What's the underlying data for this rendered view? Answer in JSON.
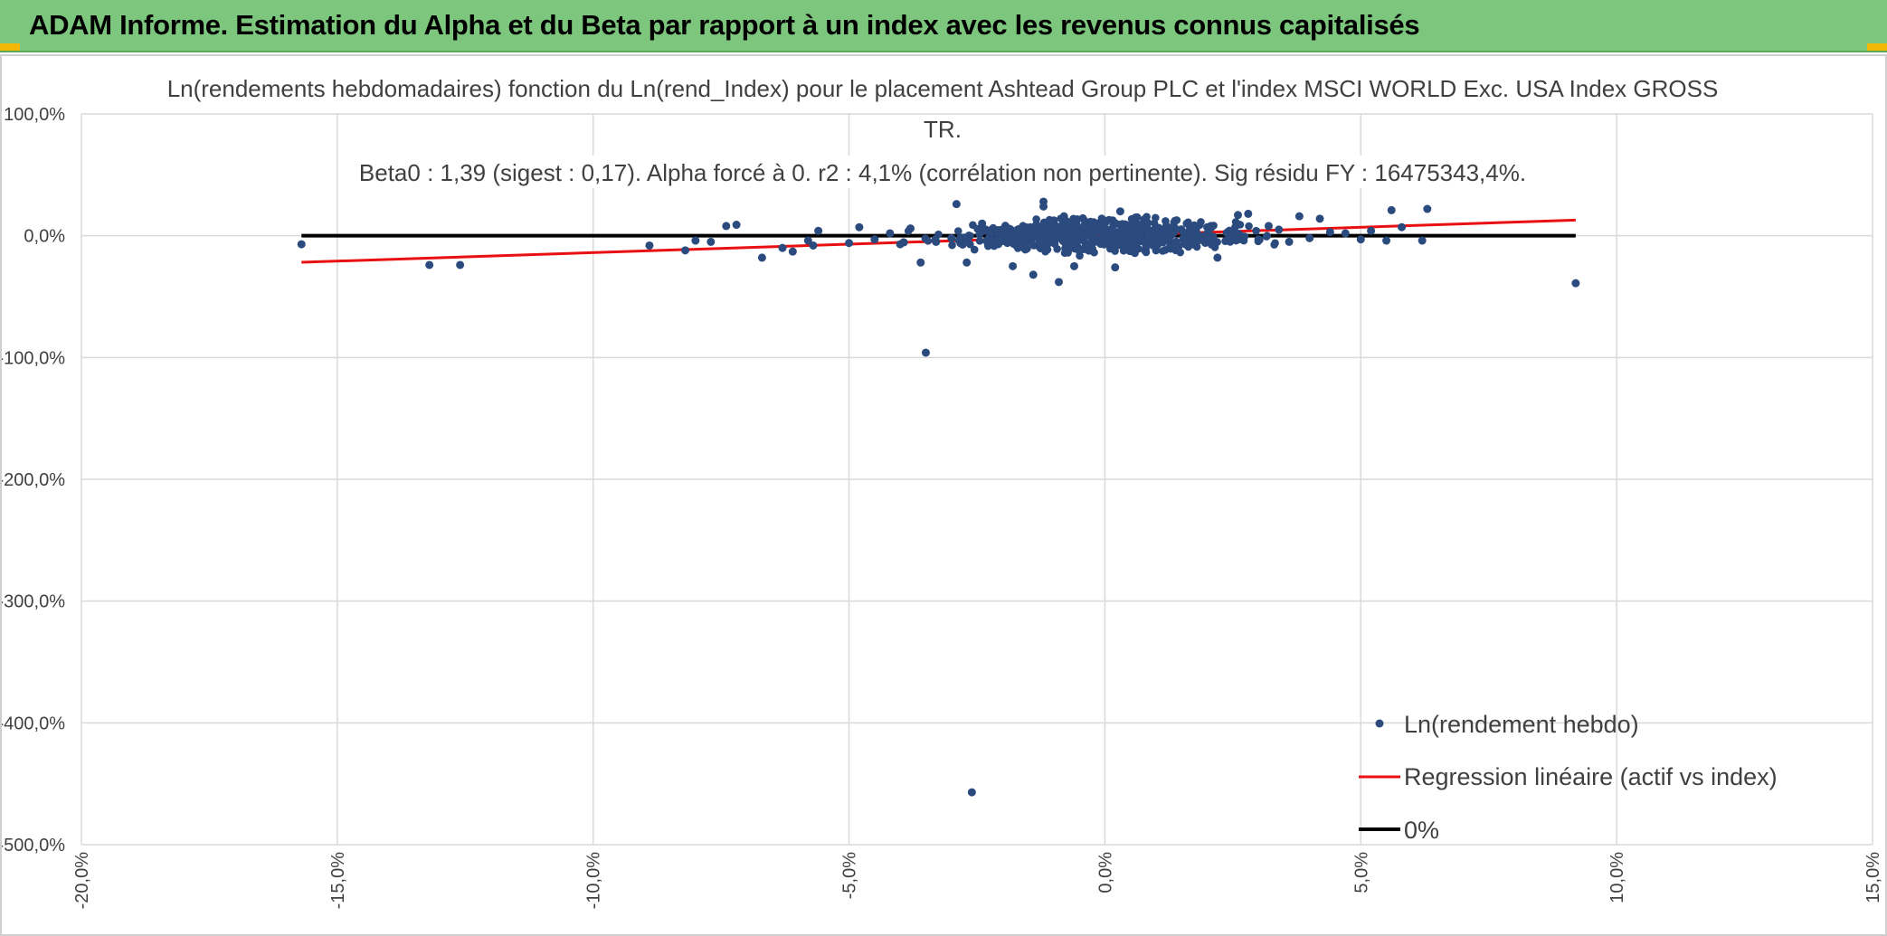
{
  "header": {
    "title": "ADAM Informe. Estimation du Alpha et du Beta par rapport à un index avec les revenus connus capitalisés"
  },
  "colors": {
    "header_bg": "#7dc67d",
    "points": "#2b4a7e",
    "regression": "#e81010",
    "zero_line": "#000000",
    "grid": "#d9d9d9"
  },
  "chart_data": {
    "type": "scatter",
    "title": [
      "Ln(rendements hebdomadaires) fonction du Ln(rend_Index) pour le placement Ashtead Group PLC et l'index MSCI WORLD Exc. USA Index GROSS",
      "TR.",
      "Beta0 : 1,39 (sigest : 0,17). Alpha forcé à 0. r2 : 4,1% (corrélation non pertinente). Sig résidu FY : 16475343,4%."
    ],
    "xlim": [
      -0.2,
      0.15
    ],
    "ylim": [
      -5.0,
      1.0
    ],
    "x_ticks": [
      -0.2,
      -0.15,
      -0.1,
      -0.05,
      0.0,
      0.05,
      0.1,
      0.15
    ],
    "x_tick_labels": [
      "-20,0%",
      "-15,0%",
      "-10,0%",
      "-5,0%",
      "0,0%",
      "5,0%",
      "10,0%",
      "15,0%"
    ],
    "y_ticks": [
      1.0,
      0.0,
      -1.0,
      -2.0,
      -3.0,
      -4.0,
      -5.0
    ],
    "y_tick_labels": [
      "100,0%",
      "0,0%",
      "-100,0%",
      "-200,0%",
      "-300,0%",
      "-400,0%",
      "-500,0%"
    ],
    "grid": true,
    "legend_position": "bottom-right",
    "series": [
      {
        "name": "Ln(rendement hebdo)",
        "kind": "scatter",
        "points": [
          [
            -0.157,
            -0.07
          ],
          [
            -0.132,
            -0.24
          ],
          [
            -0.126,
            -0.24
          ],
          [
            -0.089,
            -0.08
          ],
          [
            -0.082,
            -0.12
          ],
          [
            -0.08,
            -0.04
          ],
          [
            -0.077,
            -0.05
          ],
          [
            -0.074,
            0.08
          ],
          [
            -0.072,
            0.09
          ],
          [
            -0.067,
            -0.18
          ],
          [
            -0.063,
            -0.1
          ],
          [
            -0.061,
            -0.13
          ],
          [
            -0.058,
            -0.04
          ],
          [
            -0.057,
            -0.08
          ],
          [
            -0.056,
            0.04
          ],
          [
            -0.05,
            -0.06
          ],
          [
            -0.048,
            0.07
          ],
          [
            -0.045,
            -0.03
          ],
          [
            -0.042,
            0.02
          ],
          [
            -0.04,
            -0.07
          ],
          [
            -0.038,
            0.06
          ],
          [
            -0.036,
            -0.22
          ],
          [
            -0.035,
            -0.96
          ],
          [
            -0.033,
            -0.05
          ],
          [
            -0.03,
            -0.02
          ],
          [
            -0.029,
            0.26
          ],
          [
            -0.027,
            -0.22
          ],
          [
            -0.026,
            -4.57
          ],
          [
            -0.024,
            0.1
          ],
          [
            -0.02,
            -0.03
          ],
          [
            -0.018,
            -0.25
          ],
          [
            -0.016,
            0.08
          ],
          [
            -0.014,
            -0.32
          ],
          [
            -0.012,
            0.28
          ],
          [
            -0.012,
            0.24
          ],
          [
            -0.01,
            -0.02
          ],
          [
            -0.009,
            -0.38
          ],
          [
            -0.008,
            0.16
          ],
          [
            -0.006,
            -0.25
          ],
          [
            -0.004,
            0.07
          ],
          [
            -0.002,
            -0.05
          ],
          [
            0.0,
            0.03
          ],
          [
            0.002,
            -0.26
          ],
          [
            0.003,
            0.2
          ],
          [
            0.005,
            -0.08
          ],
          [
            0.006,
            0.15
          ],
          [
            0.008,
            0.06
          ],
          [
            0.01,
            -0.12
          ],
          [
            0.012,
            0.08
          ],
          [
            0.014,
            -0.09
          ],
          [
            0.016,
            0.1
          ],
          [
            0.018,
            -0.04
          ],
          [
            0.02,
            0.07
          ],
          [
            0.022,
            -0.18
          ],
          [
            0.024,
            0.03
          ],
          [
            0.026,
            0.17
          ],
          [
            0.028,
            0.18
          ],
          [
            0.03,
            -0.03
          ],
          [
            0.032,
            0.08
          ],
          [
            0.034,
            0.05
          ],
          [
            0.036,
            -0.05
          ],
          [
            0.038,
            0.16
          ],
          [
            0.04,
            -0.02
          ],
          [
            0.042,
            0.14
          ],
          [
            0.044,
            0.03
          ],
          [
            0.047,
            0.02
          ],
          [
            0.05,
            -0.03
          ],
          [
            0.052,
            0.04
          ],
          [
            0.055,
            -0.04
          ],
          [
            0.056,
            0.21
          ],
          [
            0.058,
            0.07
          ],
          [
            0.062,
            -0.04
          ],
          [
            0.063,
            0.22
          ],
          [
            0.092,
            -0.39
          ]
        ],
        "dense_cloud": {
          "x_range": [
            -0.045,
            0.04
          ],
          "y_range": [
            -0.18,
            0.18
          ],
          "count": 600
        }
      },
      {
        "name": "Regression linéaire (actif vs index)",
        "kind": "line",
        "points": [
          [
            -0.157,
            -0.218
          ],
          [
            0.092,
            0.128
          ]
        ]
      },
      {
        "name": "0%",
        "kind": "line",
        "points": [
          [
            -0.157,
            0.0
          ],
          [
            0.092,
            0.0
          ]
        ]
      }
    ]
  }
}
